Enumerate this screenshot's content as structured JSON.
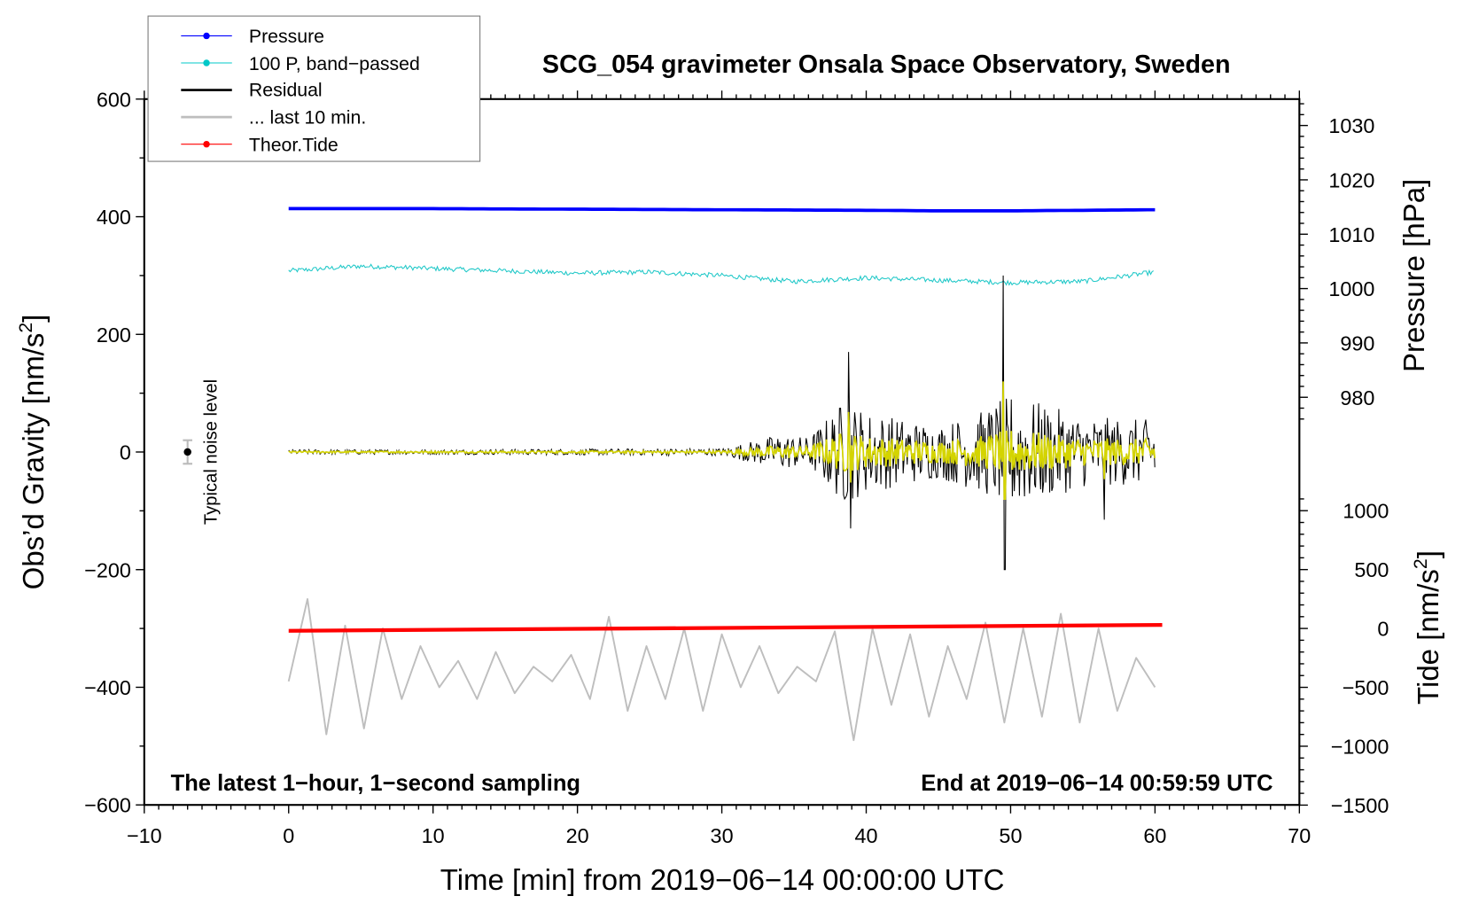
{
  "chart_data": {
    "type": "line",
    "title": "SCG_054 gravimeter Onsala Space Observatory, Sweden",
    "xlabel": "Time [min] from 2019−06−14 00:00:00 UTC",
    "ylabel_left": "Obs’d Gravity [nm/s",
    "ylabel_left_sup": "2",
    "ylabel_left_end": "]",
    "ylabel_right_pressure": "Pressure [hPa]",
    "ylabel_right_tide": "Tide [nm/s",
    "ylabel_right_tide_sup": "2",
    "ylabel_right_tide_end": "]",
    "xlim": [
      -10,
      70
    ],
    "ylim_gravity": [
      -600,
      600
    ],
    "pressure_ticks": [
      980,
      990,
      1000,
      1010,
      1020,
      1030
    ],
    "tide_ticks": [
      -1500,
      -1000,
      -500,
      0,
      500,
      1000
    ],
    "x_ticks": [
      -10,
      0,
      10,
      20,
      30,
      40,
      50,
      60,
      70
    ],
    "y_ticks": [
      -600,
      -400,
      -200,
      0,
      200,
      400,
      600
    ],
    "tick_labels": {
      "x": [
        "−10",
        "0",
        "10",
        "20",
        "30",
        "40",
        "50",
        "60",
        "70"
      ],
      "y": [
        "−600",
        "−400",
        "−200",
        "0",
        "200",
        "400",
        "600"
      ],
      "pressure": [
        "980",
        "990",
        "1000",
        "1010",
        "1020",
        "1030"
      ],
      "tide": [
        "−1500",
        "−1000",
        "−500",
        "0",
        "500",
        "1000"
      ]
    },
    "legend": {
      "placement": "top-left",
      "entries": [
        {
          "label": "Pressure",
          "color": "#0000ff",
          "marker": true
        },
        {
          "label": "100 P, band−passed",
          "color": "#00c8c8",
          "marker": true
        },
        {
          "label": "Residual",
          "color": "#000000",
          "marker": false
        },
        {
          "label": "... last 10 min.",
          "color": "#bebebe",
          "marker": false
        },
        {
          "label": "Theor.Tide",
          "color": "#ff0000",
          "marker": true
        }
      ]
    },
    "annotations": {
      "noise": "Typical noise level",
      "noise_level": 20,
      "left_note": "The latest 1−hour, 1−second sampling",
      "right_note": "End at 2019−06−14 00:59:59 UTC"
    },
    "series": {
      "pressure_hPa": {
        "x": [
          0,
          10,
          20,
          30,
          40,
          45,
          50,
          60
        ],
        "y": [
          1014.7,
          1014.7,
          1014.6,
          1014.5,
          1014.4,
          1014.3,
          1014.3,
          1014.5
        ]
      },
      "bandpassed_gravity_units": {
        "x": [
          0,
          5,
          10,
          15,
          20,
          25,
          30,
          35,
          40,
          45,
          50,
          55,
          60
        ],
        "y": [
          308,
          316,
          312,
          308,
          304,
          306,
          300,
          290,
          296,
          292,
          288,
          290,
          306
        ]
      },
      "residual_envelope": {
        "x": [
          0,
          10,
          20,
          30,
          34,
          36,
          38.5,
          40,
          45,
          48,
          50,
          55,
          60
        ],
        "y": [
          4,
          4,
          5,
          6,
          30,
          25,
          90,
          70,
          45,
          70,
          100,
          60,
          55
        ]
      },
      "residual_spikes": [
        {
          "x": 38.8,
          "y": 170
        },
        {
          "x": 38.9,
          "y": -130
        },
        {
          "x": 49.5,
          "y": 300
        },
        {
          "x": 49.6,
          "y": -200
        },
        {
          "x": 56.5,
          "y": -115
        }
      ],
      "last10_gravity_units": [
        -390,
        -250,
        -480,
        -295,
        -470,
        -300,
        -420,
        -330,
        -400,
        -355,
        -420,
        -340,
        -410,
        -365,
        -390,
        -345,
        -420,
        -280,
        -440,
        -330,
        -420,
        -300,
        -440,
        -310,
        -400,
        -330,
        -410,
        -365,
        -390,
        -305,
        -490,
        -300,
        -430,
        -310,
        -450,
        -330,
        -420,
        -290,
        -460,
        -300,
        -450,
        -275,
        -460,
        -300,
        -440,
        -350,
        -400
      ],
      "tide_nm_s2": {
        "x": [
          0,
          60.5
        ],
        "y": [
          -20,
          30
        ]
      }
    }
  }
}
